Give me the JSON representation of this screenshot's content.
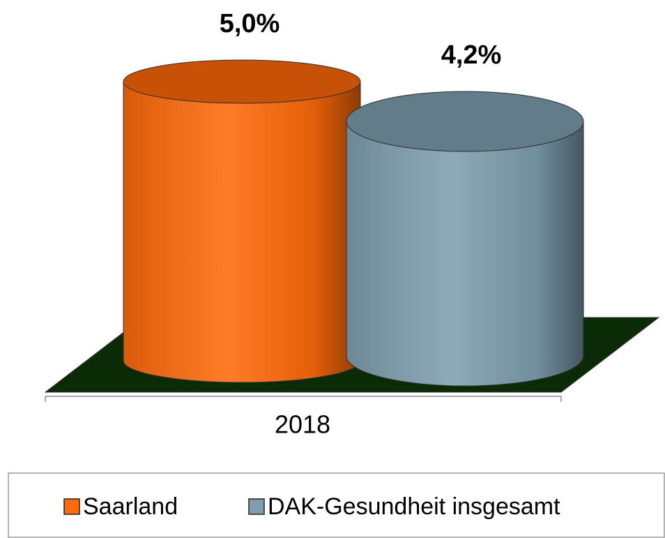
{
  "chart_data": {
    "type": "bar",
    "categories": [
      "2018"
    ],
    "series": [
      {
        "name": "Saarland",
        "color": "#ff6a0a",
        "values": [
          5.0
        ],
        "value_labels": [
          "5,0%"
        ]
      },
      {
        "name": "DAK-Gesundheit insgesamt",
        "color": "#7f9fb0",
        "values": [
          4.2
        ],
        "value_labels": [
          "4,2%"
        ]
      }
    ],
    "ylim": [
      0,
      5
    ],
    "legend": "bottom"
  }
}
